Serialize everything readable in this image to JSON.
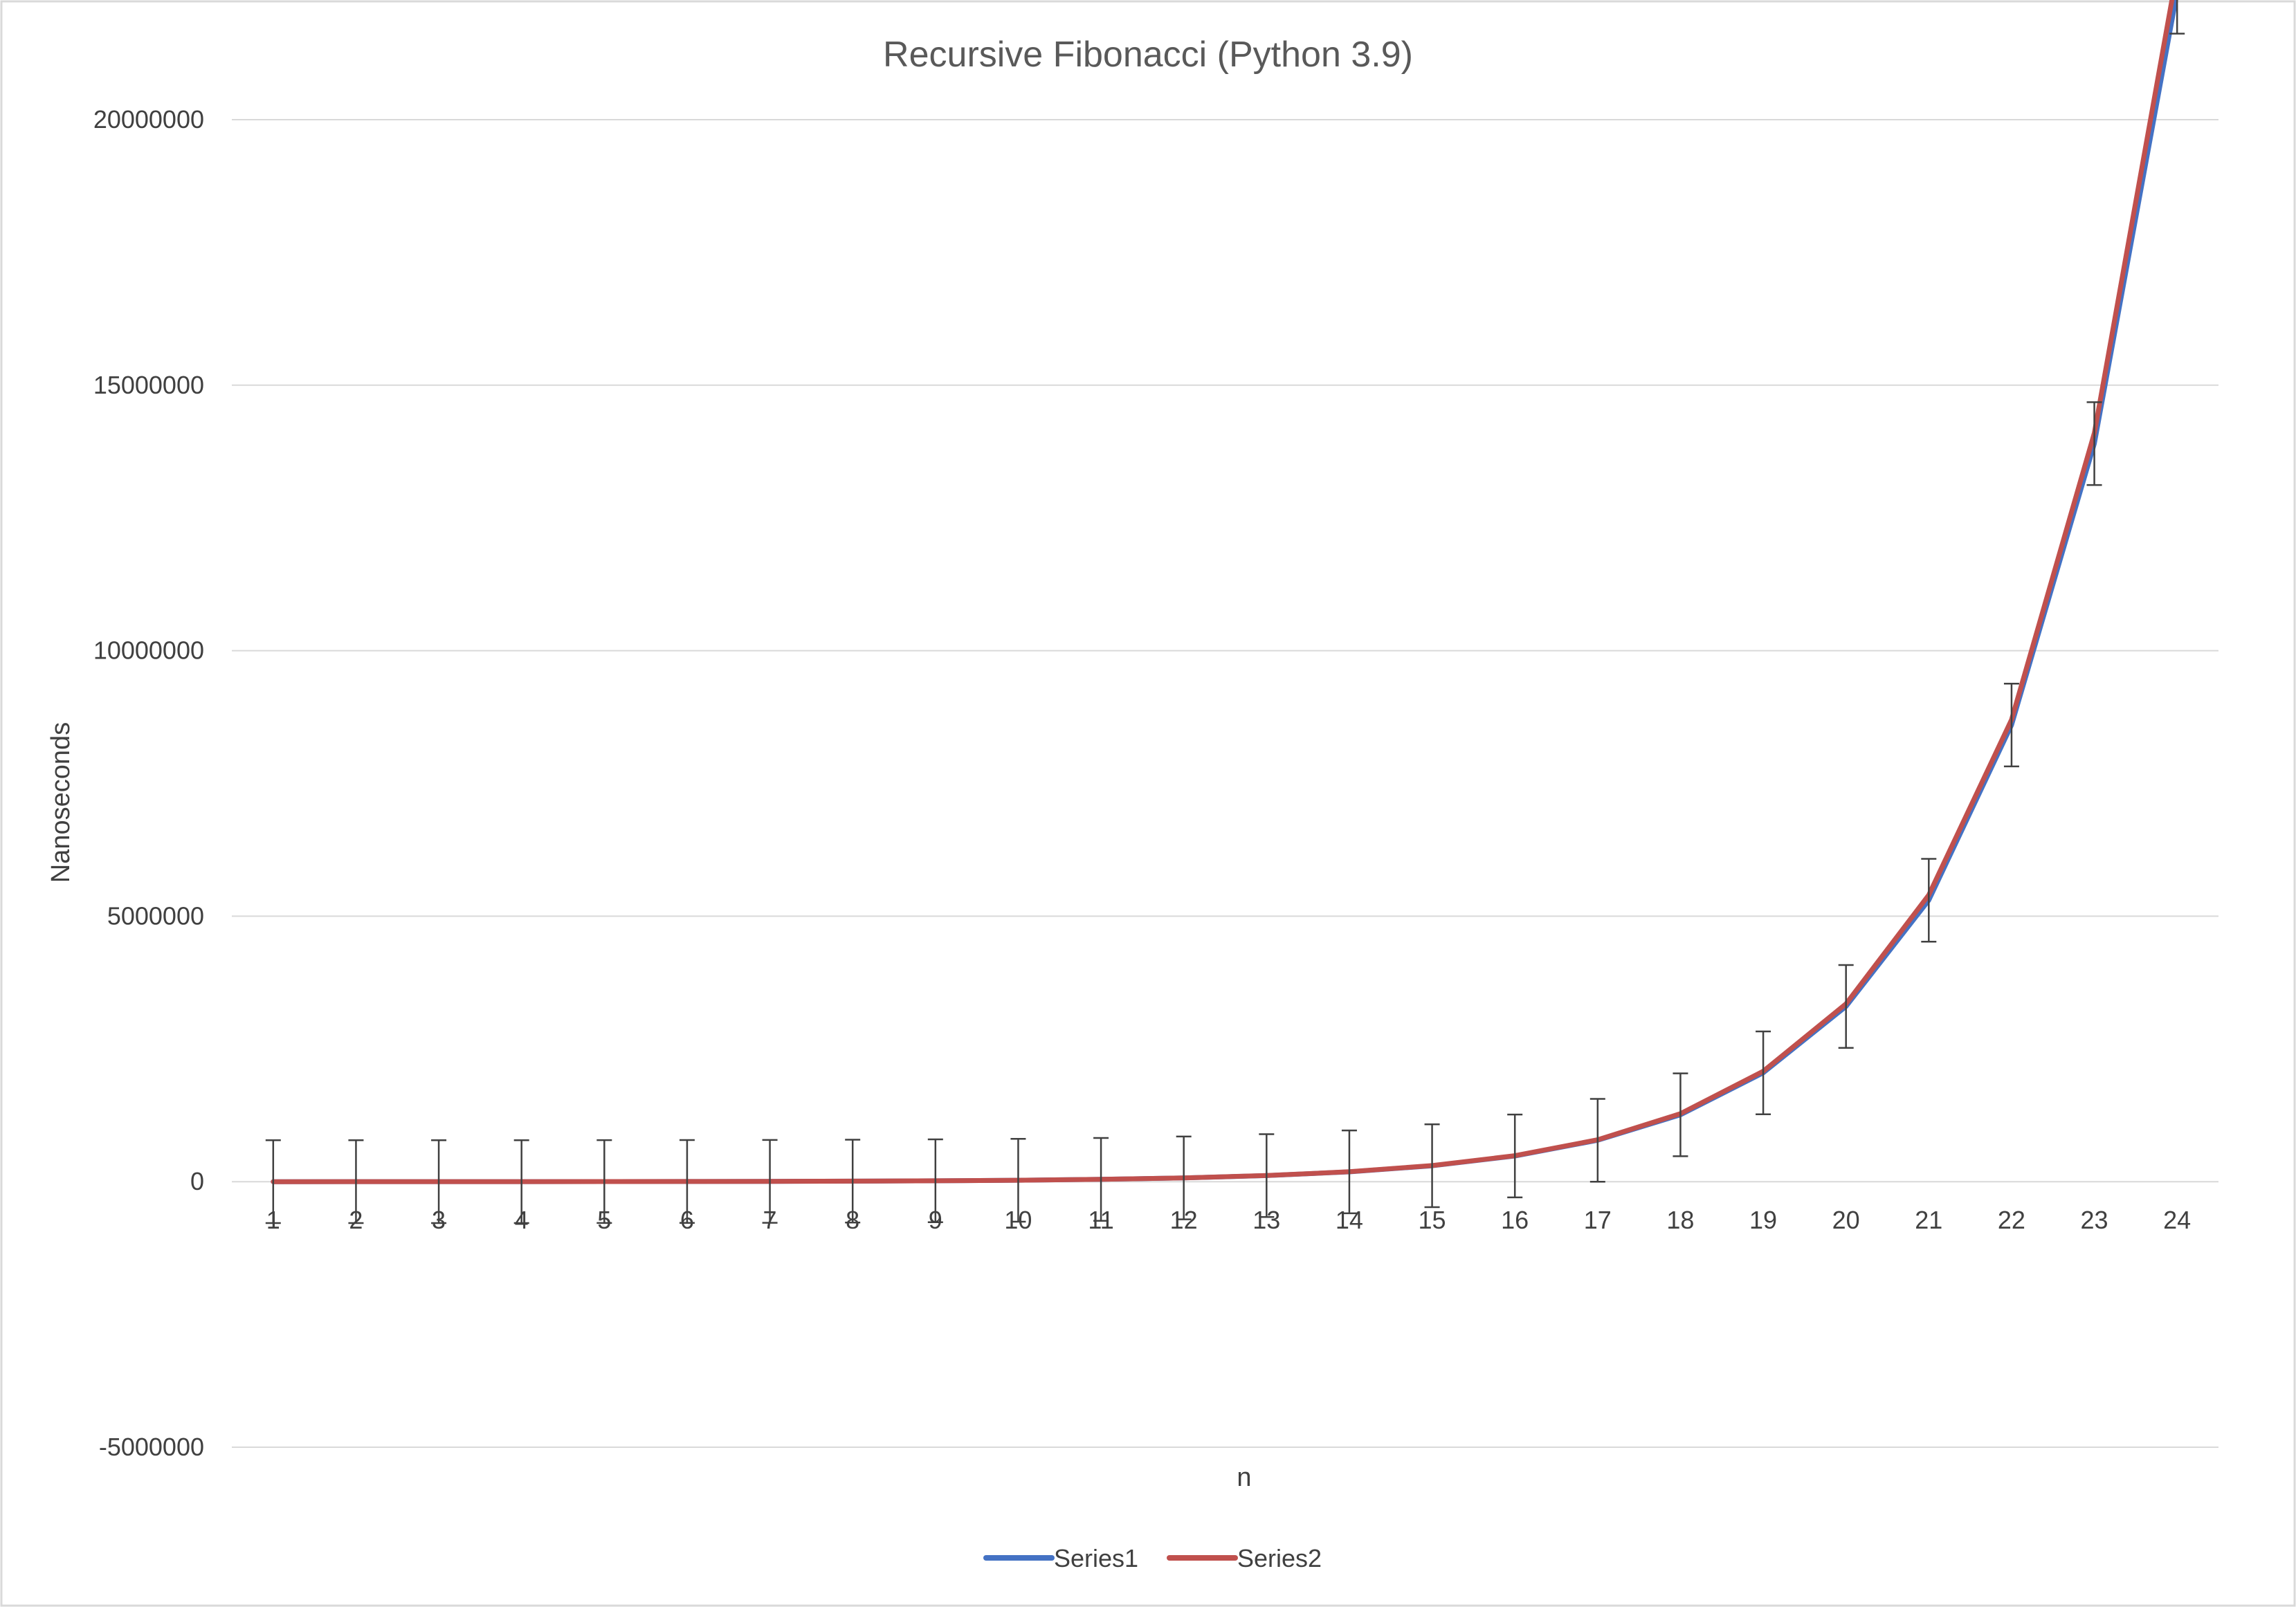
{
  "chart_data": {
    "type": "line",
    "title": "Recursive Fibonacci (Python 3.9)",
    "xlabel": "n",
    "ylabel": "Nanoseconds",
    "categories": [
      "1",
      "2",
      "3",
      "4",
      "5",
      "6",
      "7",
      "8",
      "9",
      "10",
      "11",
      "12",
      "13",
      "14",
      "15",
      "16",
      "17",
      "18",
      "19",
      "20",
      "21",
      "22",
      "23",
      "24"
    ],
    "ylim": [
      -5000000,
      20000000
    ],
    "yticks": [
      {
        "value": 20000000,
        "label": "20000000"
      },
      {
        "value": 15000000,
        "label": "15000000"
      },
      {
        "value": 10000000,
        "label": "10000000"
      },
      {
        "value": 5000000,
        "label": "5000000"
      },
      {
        "value": 0,
        "label": "0"
      },
      {
        "value": -5000000,
        "label": "-5000000"
      }
    ],
    "grid": true,
    "legend_position": "bottom",
    "series": [
      {
        "name": "Series1",
        "color": "#4472c4",
        "values": [
          500,
          700,
          1000,
          1500,
          2500,
          4000,
          6500,
          10000,
          17000,
          27000,
          44000,
          71000,
          115000,
          185000,
          300000,
          485000,
          780000,
          1260000,
          2050000,
          3300000,
          5300000,
          8600000,
          13900000,
          22400000
        ]
      },
      {
        "name": "Series2",
        "color": "#c0504d",
        "values": [
          500,
          700,
          1000,
          1500,
          2500,
          4000,
          6500,
          10000,
          17000,
          27000,
          44000,
          72000,
          116000,
          187000,
          303000,
          490000,
          790000,
          1280000,
          2080000,
          3350000,
          5400000,
          8700000,
          14100000,
          22800000
        ]
      }
    ],
    "error_bars": {
      "series": "Series1",
      "plus_minus": 780000
    }
  }
}
